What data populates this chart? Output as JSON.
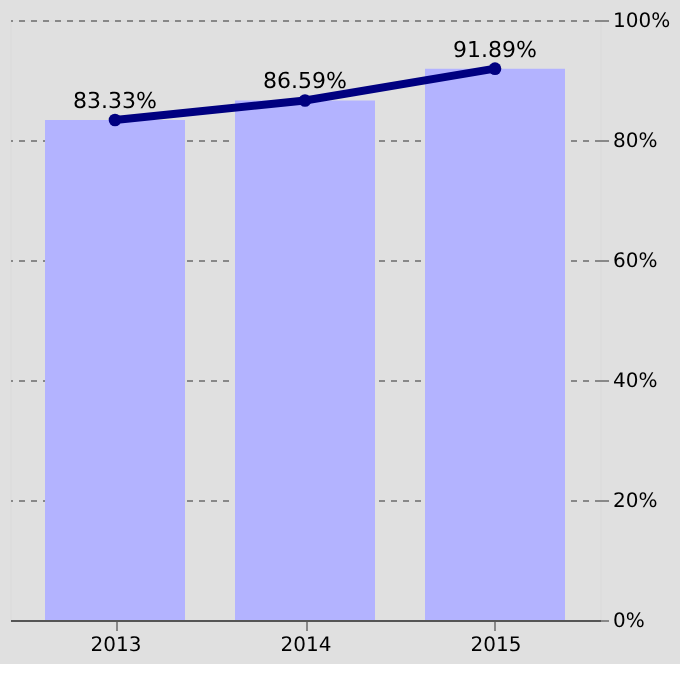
{
  "chart_data": {
    "type": "bar",
    "categories": [
      "2013",
      "2014",
      "2015"
    ],
    "series": [
      {
        "color": "#b3b3ff",
        "values": [
          83.33,
          86.59,
          91.89
        ]
      },
      {
        "type": "line",
        "color": "#000080",
        "values": [
          83.33,
          86.59,
          91.89
        ],
        "marker": "circle",
        "line_style": "solid",
        "value_labels": [
          "83.33%",
          "86.59%",
          "91.89%"
        ]
      }
    ],
    "ylim": [
      0,
      100
    ],
    "yticks": [
      {
        "value": 0,
        "label": "0%"
      },
      {
        "value": 20,
        "label": "20%"
      },
      {
        "value": 40,
        "label": "40%"
      },
      {
        "value": 60,
        "label": "60%"
      },
      {
        "value": 80,
        "label": "80%"
      },
      {
        "value": 100,
        "label": "100%"
      }
    ],
    "grid": "y"
  }
}
